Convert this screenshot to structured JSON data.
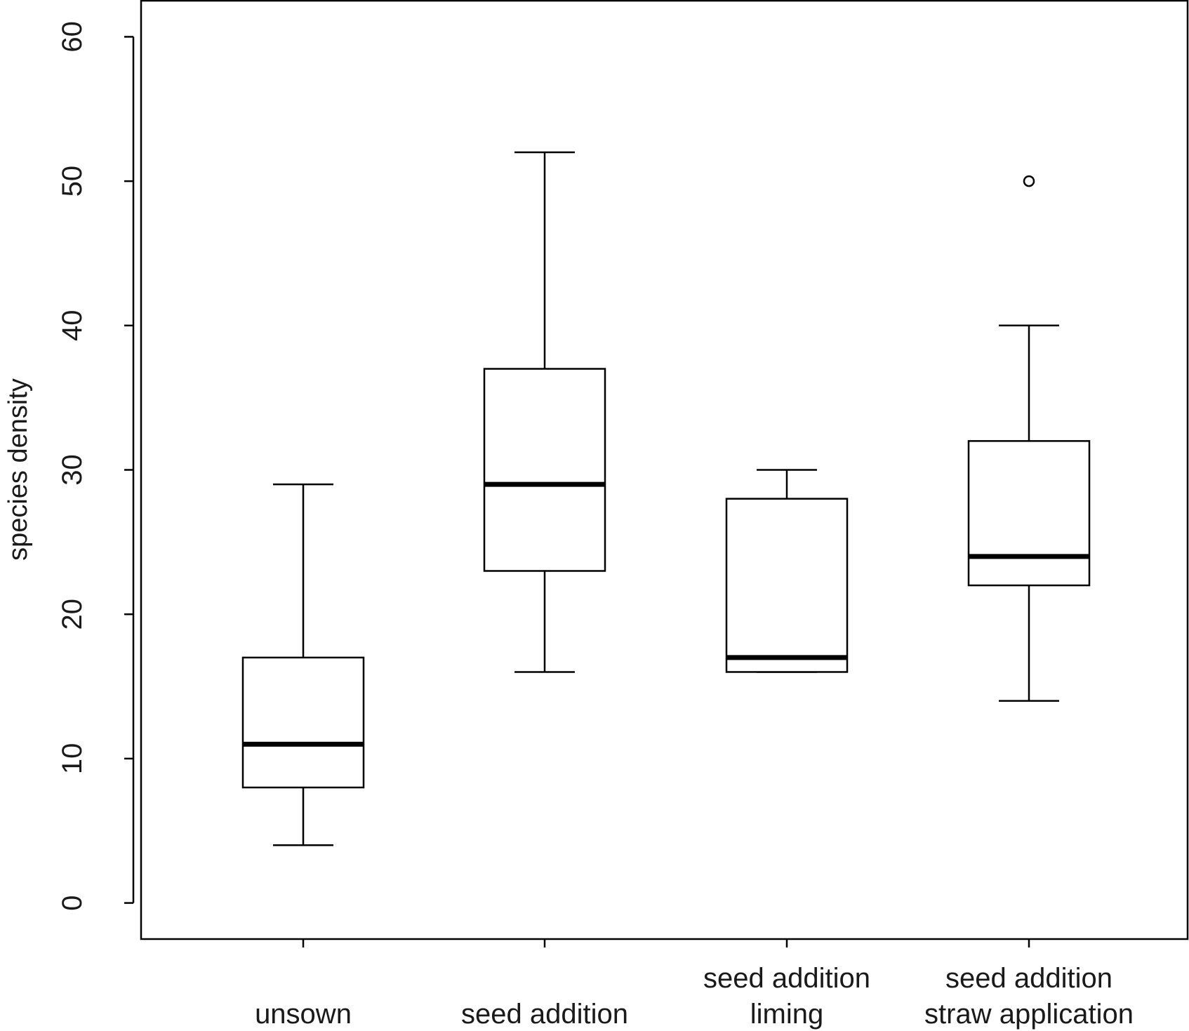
{
  "chart_data": {
    "type": "boxplot",
    "title": "",
    "xlabel": "",
    "ylabel": "species density",
    "ylim": [
      -2.5,
      62.5
    ],
    "yticks": [
      0,
      10,
      20,
      30,
      40,
      50,
      60
    ],
    "grid": false,
    "categories": [
      {
        "lines": [
          "unsown"
        ]
      },
      {
        "lines": [
          "seed addition"
        ]
      },
      {
        "lines": [
          "seed addition",
          "liming"
        ]
      },
      {
        "lines": [
          "seed addition",
          "straw application"
        ]
      }
    ],
    "boxes": [
      {
        "whisker_low": 4,
        "q1": 8,
        "median": 11,
        "q3": 17,
        "whisker_high": 29,
        "outliers": []
      },
      {
        "whisker_low": 16,
        "q1": 23,
        "median": 29,
        "q3": 37,
        "whisker_high": 52,
        "outliers": []
      },
      {
        "whisker_low": 16,
        "q1": 16,
        "median": 17,
        "q3": 28,
        "whisker_high": 30,
        "outliers": []
      },
      {
        "whisker_low": 14,
        "q1": 22,
        "median": 24,
        "q3": 32,
        "whisker_high": 40,
        "outliers": [
          50
        ]
      }
    ]
  }
}
